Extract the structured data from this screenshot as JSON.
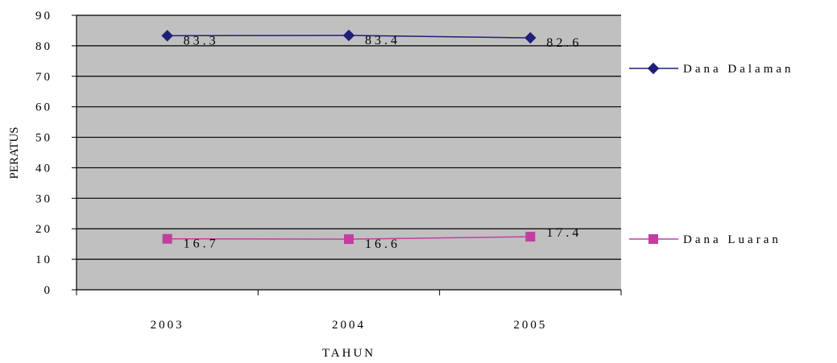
{
  "chart_data": {
    "type": "line",
    "title": "",
    "xlabel": "TAHUN",
    "ylabel": "PERATUS",
    "categories": [
      "2003",
      "2004",
      "2005"
    ],
    "ylim": [
      0,
      90
    ],
    "yticks": [
      "0",
      "10",
      "20",
      "30",
      "40",
      "50",
      "60",
      "70",
      "80",
      "90"
    ],
    "grid": true,
    "legend_position": "right",
    "plot_background": "#c0c0c0",
    "series": [
      {
        "name": "Dana Dalaman",
        "values": [
          83.3,
          83.4,
          82.6
        ],
        "labels": [
          "83.3",
          "83.4",
          "82.6"
        ],
        "color": "#1f1f7a",
        "marker": "diamond"
      },
      {
        "name": "Dana Luaran",
        "values": [
          16.7,
          16.6,
          17.4
        ],
        "labels": [
          "16.7",
          "16.6",
          "17.4"
        ],
        "color": "#c040a0",
        "marker": "square"
      }
    ]
  }
}
